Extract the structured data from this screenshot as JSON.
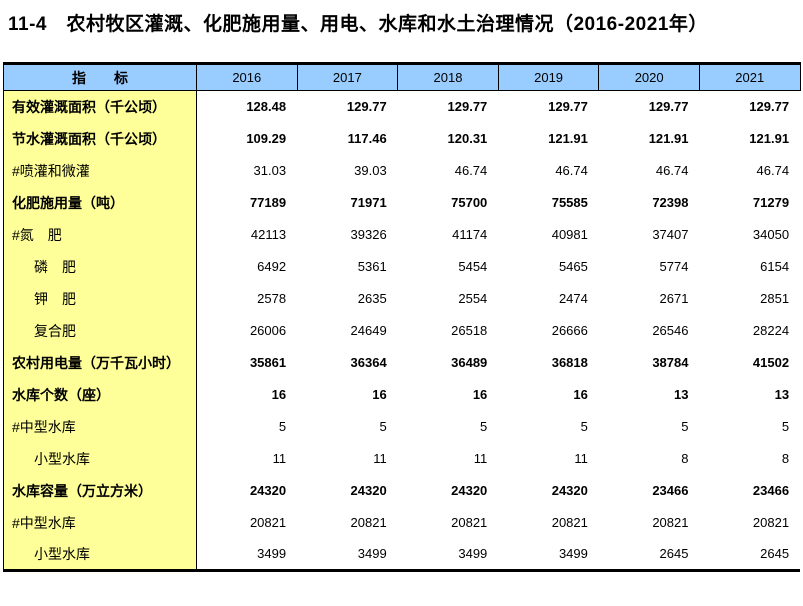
{
  "title": "11-4　农村牧区灌溉、化肥施用量、用电、水库和水土治理情况（2016-2021年）",
  "colors": {
    "header_bg": "#99CCFF",
    "indicator_col_bg": "#FFFF99",
    "border": "#000000",
    "title_color": "#000000"
  },
  "table": {
    "header": {
      "indicator_label": "指　　标",
      "years": [
        "2016",
        "2017",
        "2018",
        "2019",
        "2020",
        "2021"
      ]
    },
    "rows": [
      {
        "label": "有效灌溉面积（千公顷）",
        "bold": true,
        "indent": 0,
        "values": [
          "128.48",
          "129.77",
          "129.77",
          "129.77",
          "129.77",
          "129.77"
        ]
      },
      {
        "label": "节水灌溉面积（千公顷）",
        "bold": true,
        "indent": 0,
        "values": [
          "109.29",
          "117.46",
          "120.31",
          "121.91",
          "121.91",
          "121.91"
        ]
      },
      {
        "label": "#喷灌和微灌",
        "bold": false,
        "indent": 0,
        "values": [
          "31.03",
          "39.03",
          "46.74",
          "46.74",
          "46.74",
          "46.74"
        ]
      },
      {
        "label": "化肥施用量（吨）",
        "bold": true,
        "indent": 0,
        "values": [
          "77189",
          "71971",
          "75700",
          "75585",
          "72398",
          "71279"
        ]
      },
      {
        "label": "#氮　肥",
        "bold": false,
        "indent": 0,
        "values": [
          "42113",
          "39326",
          "41174",
          "40981",
          "37407",
          "34050"
        ]
      },
      {
        "label": "磷　肥",
        "bold": false,
        "indent": 1,
        "values": [
          "6492",
          "5361",
          "5454",
          "5465",
          "5774",
          "6154"
        ]
      },
      {
        "label": "钾　肥",
        "bold": false,
        "indent": 1,
        "values": [
          "2578",
          "2635",
          "2554",
          "2474",
          "2671",
          "2851"
        ]
      },
      {
        "label": "复合肥",
        "bold": false,
        "indent": 1,
        "values": [
          "26006",
          "24649",
          "26518",
          "26666",
          "26546",
          "28224"
        ]
      },
      {
        "label": "农村用电量（万千瓦小时）",
        "bold": true,
        "indent": 0,
        "values": [
          "35861",
          "36364",
          "36489",
          "36818",
          "38784",
          "41502"
        ]
      },
      {
        "label": "水库个数（座）",
        "bold": true,
        "indent": 0,
        "values": [
          "16",
          "16",
          "16",
          "16",
          "13",
          "13"
        ]
      },
      {
        "label": "#中型水库",
        "bold": false,
        "indent": 0,
        "values": [
          "5",
          "5",
          "5",
          "5",
          "5",
          "5"
        ]
      },
      {
        "label": "小型水库",
        "bold": false,
        "indent": 1,
        "values": [
          "11",
          "11",
          "11",
          "11",
          "8",
          "8"
        ]
      },
      {
        "label": "水库容量（万立方米）",
        "bold": true,
        "indent": 0,
        "values": [
          "24320",
          "24320",
          "24320",
          "24320",
          "23466",
          "23466"
        ]
      },
      {
        "label": "#中型水库",
        "bold": false,
        "indent": 0,
        "values": [
          "20821",
          "20821",
          "20821",
          "20821",
          "20821",
          "20821"
        ]
      },
      {
        "label": "小型水库",
        "bold": false,
        "indent": 1,
        "values": [
          "3499",
          "3499",
          "3499",
          "3499",
          "2645",
          "2645"
        ]
      }
    ]
  }
}
